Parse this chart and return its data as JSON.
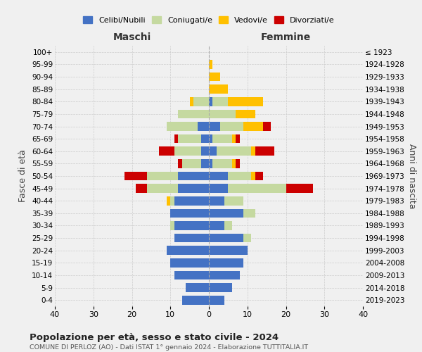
{
  "age_groups": [
    "0-4",
    "5-9",
    "10-14",
    "15-19",
    "20-24",
    "25-29",
    "30-34",
    "35-39",
    "40-44",
    "45-49",
    "50-54",
    "55-59",
    "60-64",
    "65-69",
    "70-74",
    "75-79",
    "80-84",
    "85-89",
    "90-94",
    "95-99",
    "100+"
  ],
  "birth_years": [
    "2019-2023",
    "2014-2018",
    "2009-2013",
    "2004-2008",
    "1999-2003",
    "1994-1998",
    "1989-1993",
    "1984-1988",
    "1979-1983",
    "1974-1978",
    "1969-1973",
    "1964-1968",
    "1959-1963",
    "1954-1958",
    "1949-1953",
    "1944-1948",
    "1939-1943",
    "1934-1938",
    "1929-1933",
    "1924-1928",
    "≤ 1923"
  ],
  "maschi": {
    "celibi": [
      7,
      6,
      9,
      10,
      11,
      9,
      9,
      10,
      9,
      8,
      8,
      2,
      2,
      2,
      3,
      0,
      0,
      0,
      0,
      0,
      0
    ],
    "coniugati": [
      0,
      0,
      0,
      0,
      0,
      0,
      1,
      0,
      1,
      8,
      8,
      5,
      7,
      6,
      8,
      8,
      4,
      0,
      0,
      0,
      0
    ],
    "vedovi": [
      0,
      0,
      0,
      0,
      0,
      0,
      0,
      0,
      1,
      0,
      0,
      0,
      0,
      0,
      0,
      0,
      1,
      0,
      0,
      0,
      0
    ],
    "divorziati": [
      0,
      0,
      0,
      0,
      0,
      0,
      0,
      0,
      0,
      3,
      6,
      1,
      4,
      1,
      0,
      0,
      0,
      0,
      0,
      0,
      0
    ]
  },
  "femmine": {
    "nubili": [
      4,
      6,
      8,
      9,
      10,
      9,
      4,
      9,
      4,
      5,
      5,
      1,
      2,
      1,
      3,
      0,
      1,
      0,
      0,
      0,
      0
    ],
    "coniugate": [
      0,
      0,
      0,
      0,
      0,
      2,
      2,
      3,
      5,
      15,
      6,
      5,
      9,
      5,
      6,
      7,
      4,
      0,
      0,
      0,
      0
    ],
    "vedove": [
      0,
      0,
      0,
      0,
      0,
      0,
      0,
      0,
      0,
      0,
      1,
      1,
      1,
      1,
      5,
      5,
      9,
      5,
      3,
      1,
      0
    ],
    "divorziate": [
      0,
      0,
      0,
      0,
      0,
      0,
      0,
      0,
      0,
      7,
      2,
      1,
      5,
      1,
      2,
      0,
      0,
      0,
      0,
      0,
      0
    ]
  },
  "colors": {
    "celibi": "#4472c4",
    "coniugati": "#c5d9a0",
    "vedovi": "#ffc000",
    "divorziati": "#cc0000"
  },
  "xlim": 40,
  "title": "Popolazione per età, sesso e stato civile - 2024",
  "subtitle": "COMUNE DI PERLOZ (AO) - Dati ISTAT 1° gennaio 2024 - Elaborazione TUTTITALIA.IT",
  "ylabel_left": "Fasce di età",
  "ylabel_right": "Anni di nascita",
  "xlabel_left": "Maschi",
  "xlabel_right": "Femmine",
  "legend_labels": [
    "Celibi/Nubili",
    "Coniugati/e",
    "Vedovi/e",
    "Divorziati/e"
  ],
  "bg_color": "#f0f0f0"
}
